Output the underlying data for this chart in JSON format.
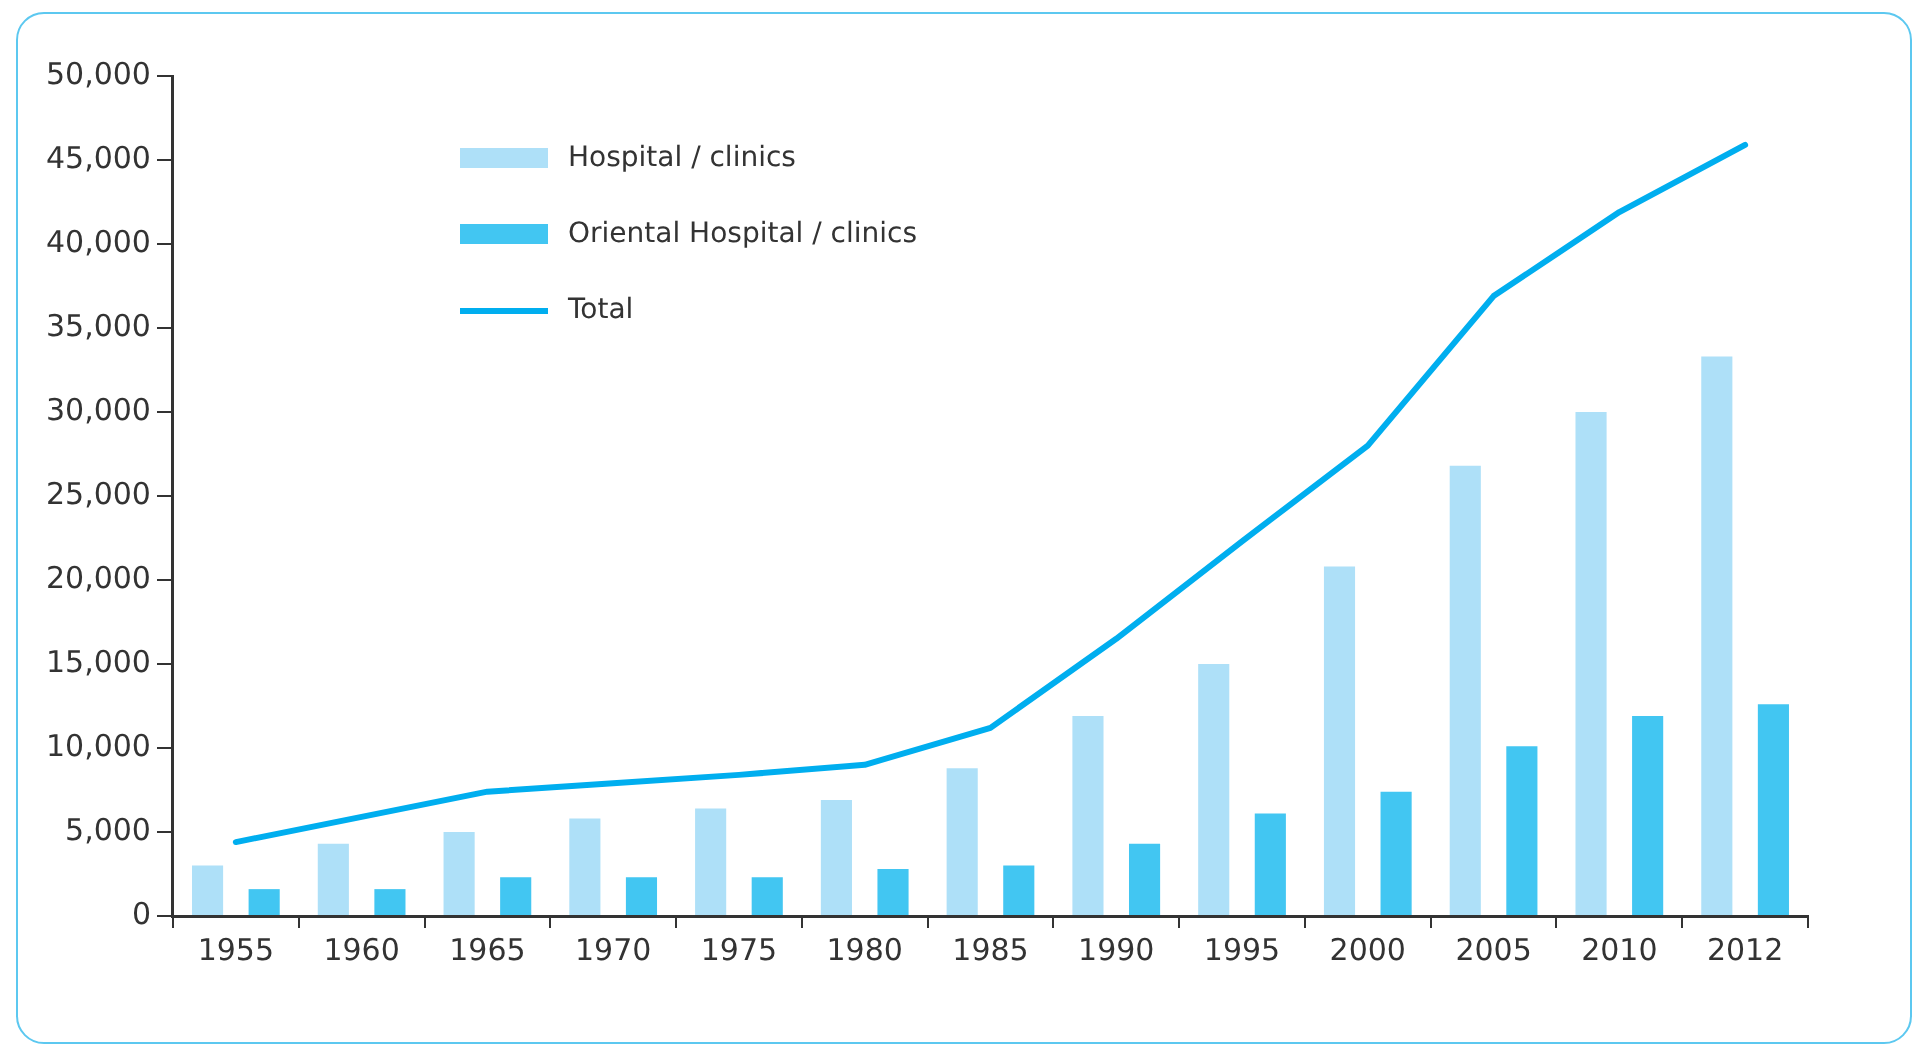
{
  "chart_data": {
    "type": "bar",
    "categories": [
      "1955",
      "1960",
      "1965",
      "1970",
      "1975",
      "1980",
      "1985",
      "1990",
      "1995",
      "2000",
      "2005",
      "2010",
      "2012"
    ],
    "series": [
      {
        "name": "Hospital / clinics",
        "color": "#aee0f8",
        "values": [
          3000,
          4300,
          5000,
          5800,
          6400,
          6900,
          8800,
          11900,
          15000,
          20800,
          26800,
          30000,
          33300
        ]
      },
      {
        "name": "Oriental Hospital / clinics",
        "color": "#42c6f2",
        "values": [
          1600,
          1600,
          2300,
          2300,
          2300,
          2800,
          3000,
          4300,
          6100,
          7400,
          10100,
          11900,
          12600
        ]
      },
      {
        "name": "Total",
        "type": "line",
        "color": "#00aeef",
        "values": [
          4400,
          5900,
          7400,
          7900,
          8400,
          9000,
          11200,
          16500,
          22300,
          28000,
          36900,
          41900,
          45900
        ]
      }
    ],
    "ylim": [
      0,
      50000
    ],
    "yticks": [
      0,
      {
        "value": 5000,
        "label": "5,000"
      },
      {
        "value": 10000,
        "label": "10,000"
      },
      {
        "value": 15000,
        "label": "15,000"
      },
      {
        "value": 20000,
        "label": "20,000"
      },
      {
        "value": 25000,
        "label": "25,000"
      },
      {
        "value": 30000,
        "label": "30,000"
      },
      {
        "value": 35000,
        "label": "35,000"
      },
      {
        "value": 40000,
        "label": "40,000"
      },
      {
        "value": 45000,
        "label": "45,000"
      },
      {
        "value": 50000,
        "label": "50,000"
      }
    ],
    "grid": false,
    "legend": "top left",
    "marker": "none"
  }
}
